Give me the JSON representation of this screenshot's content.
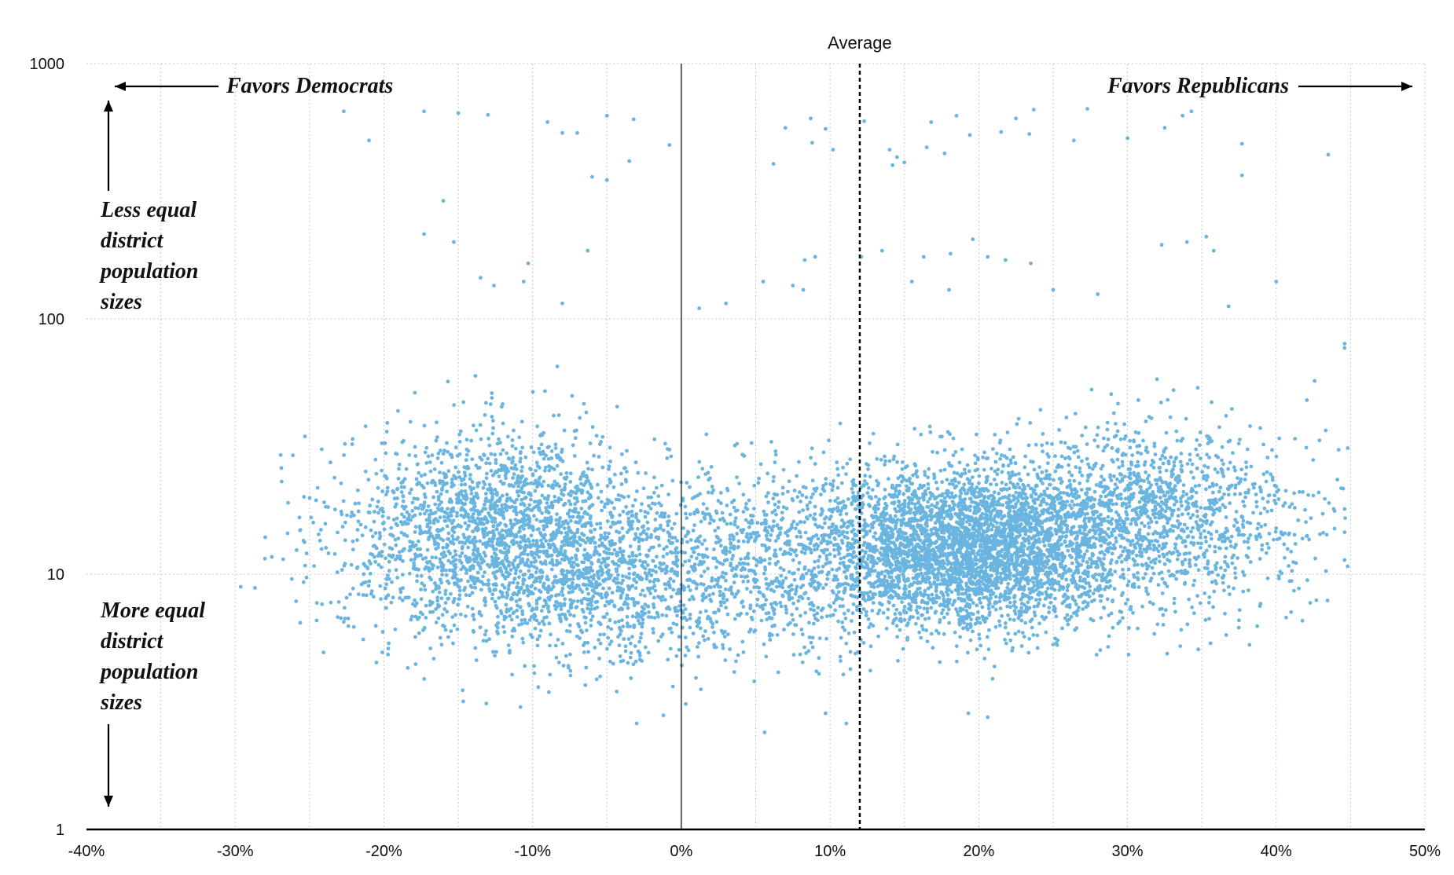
{
  "chart_data": {
    "type": "scatter",
    "title": "",
    "xlabel": "",
    "ylabel": "",
    "x_scale": "linear",
    "y_scale": "log",
    "xlim": [
      -40,
      50
    ],
    "ylim": [
      1,
      1000
    ],
    "x_ticks": [
      -40,
      -30,
      -20,
      -10,
      0,
      10,
      20,
      30,
      40,
      50
    ],
    "x_tick_labels": [
      "-40%",
      "-30%",
      "-20%",
      "-10%",
      "0%",
      "10%",
      "20%",
      "30%",
      "40%",
      "50%"
    ],
    "y_ticks": [
      1,
      10,
      100,
      1000
    ],
    "y_tick_labels": [
      "1",
      "10",
      "100",
      "1000"
    ],
    "grid": true,
    "point_color": "#6ab4e0",
    "reference_lines": [
      {
        "x": 0,
        "style": "solid",
        "label": ""
      },
      {
        "x": 12,
        "style": "dashed",
        "label": "Average"
      }
    ],
    "annotations": {
      "left_arrow": "Favors Democrats",
      "right_arrow": "Favors Republicans",
      "up_arrow": [
        "Less equal",
        "district",
        "population",
        "sizes"
      ],
      "down_arrow": [
        "More equal",
        "district",
        "population",
        "sizes"
      ]
    },
    "clusters": [
      {
        "x_mean": -12,
        "x_sd": 5.5,
        "log10_y_mean": 1.15,
        "log10_y_sd": 0.2,
        "count": 2300
      },
      {
        "x_mean": -5,
        "x_sd": 3.5,
        "log10_y_mean": 0.95,
        "log10_y_sd": 0.16,
        "count": 500
      },
      {
        "x_mean": 5,
        "x_sd": 4.5,
        "log10_y_mean": 1.05,
        "log10_y_sd": 0.18,
        "count": 900
      },
      {
        "x_mean": 19,
        "x_sd": 5.0,
        "log10_y_mean": 1.1,
        "log10_y_sd": 0.15,
        "count": 3600
      },
      {
        "x_mean": 31,
        "x_sd": 5.5,
        "log10_y_mean": 1.22,
        "log10_y_sd": 0.18,
        "count": 1500
      }
    ],
    "points": [
      [
        -22.7,
        650
      ],
      [
        -17.3,
        650
      ],
      [
        -15,
        640
      ],
      [
        -13,
        630
      ],
      [
        -21,
        500
      ],
      [
        -9,
        590
      ],
      [
        -8,
        535
      ],
      [
        -7,
        535
      ],
      [
        -5,
        625
      ],
      [
        -3.2,
        605
      ],
      [
        -0.8,
        480
      ],
      [
        -6,
        360
      ],
      [
        -5,
        350
      ],
      [
        -3.5,
        415
      ],
      [
        -16,
        290
      ],
      [
        -17.3,
        215
      ],
      [
        -15.3,
        200
      ],
      [
        -6.3,
        185
      ],
      [
        -10.3,
        165
      ],
      [
        -13.5,
        145
      ],
      [
        -12.6,
        135
      ],
      [
        -10.6,
        140
      ],
      [
        -8,
        115
      ],
      [
        7,
        560
      ],
      [
        8.7,
        610
      ],
      [
        9.7,
        555
      ],
      [
        12.3,
        595
      ],
      [
        10.2,
        460
      ],
      [
        8.8,
        490
      ],
      [
        6.2,
        405
      ],
      [
        14,
        460
      ],
      [
        14.5,
        430
      ],
      [
        15,
        410
      ],
      [
        14.2,
        400
      ],
      [
        16.5,
        470
      ],
      [
        17.7,
        445
      ],
      [
        16.8,
        590
      ],
      [
        18.5,
        625
      ],
      [
        19.4,
        525
      ],
      [
        21.5,
        540
      ],
      [
        23.7,
        660
      ],
      [
        22.5,
        610
      ],
      [
        23.4,
        530
      ],
      [
        27.3,
        665
      ],
      [
        26.4,
        500
      ],
      [
        30,
        510
      ],
      [
        32.5,
        560
      ],
      [
        33.7,
        625
      ],
      [
        34.3,
        650
      ],
      [
        37.7,
        485
      ],
      [
        37.7,
        365
      ],
      [
        43.5,
        440
      ],
      [
        8.3,
        170
      ],
      [
        9,
        175
      ],
      [
        12.1,
        175
      ],
      [
        13.5,
        185
      ],
      [
        16.3,
        175
      ],
      [
        18.1,
        180
      ],
      [
        19.6,
        205
      ],
      [
        20.6,
        175
      ],
      [
        21.8,
        170
      ],
      [
        23.5,
        165
      ],
      [
        32.3,
        195
      ],
      [
        34,
        200
      ],
      [
        35.3,
        210
      ],
      [
        35.8,
        185
      ],
      [
        40,
        140
      ],
      [
        5.5,
        140
      ],
      [
        7.5,
        135
      ],
      [
        8.2,
        130
      ],
      [
        15.5,
        140
      ],
      [
        18,
        130
      ],
      [
        25,
        130
      ],
      [
        28,
        125
      ],
      [
        3,
        115
      ],
      [
        1.2,
        110
      ],
      [
        36.8,
        112
      ],
      [
        44.6,
        80
      ],
      [
        44.6,
        77
      ],
      [
        -28,
        11.5
      ],
      [
        -25.4,
        9.3
      ],
      [
        -25.3,
        10.8
      ],
      [
        -22.7,
        6.5
      ],
      [
        -3,
        2.6
      ],
      [
        -1.2,
        2.8
      ],
      [
        0.3,
        3.1
      ],
      [
        5.6,
        2.4
      ],
      [
        9.7,
        2.85
      ],
      [
        11.1,
        2.6
      ],
      [
        19.3,
        2.85
      ],
      [
        20.6,
        2.75
      ],
      [
        41,
        7.1
      ],
      [
        44.6,
        14.6
      ],
      [
        44.6,
        18
      ],
      [
        42,
        16
      ]
    ]
  }
}
